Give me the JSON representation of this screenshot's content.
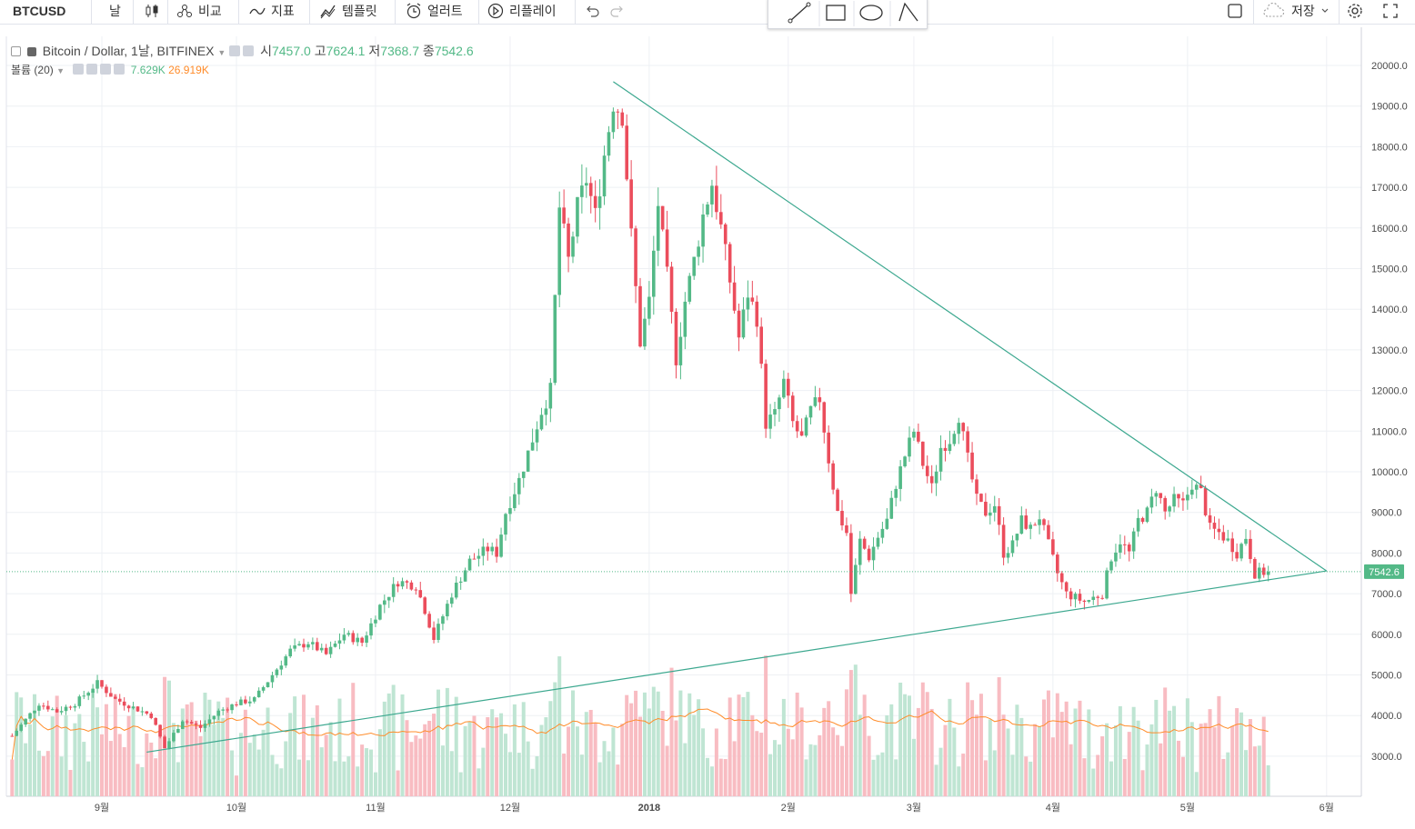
{
  "toolbar": {
    "symbol": "BTCUSD",
    "interval": "날",
    "compare": "비교",
    "indicators": "지표",
    "templates": "템플릿",
    "alerts": "얼러트",
    "replay": "리플레이",
    "save": "저장"
  },
  "legend": {
    "title": "Bitcoin / Dollar, 1날, BITFINEX",
    "open_label": "시",
    "open": "7457.0",
    "high_label": "고",
    "high": "7624.1",
    "low_label": "저",
    "low": "7368.7",
    "close_label": "종",
    "close": "7542.6",
    "volume_label": "볼륨 (20)",
    "volume": "7.629K",
    "volume_ma": "26.919K"
  },
  "price_badge": "7542.6",
  "colors": {
    "up": "#53b987",
    "down": "#eb4d5c",
    "trendline": "#3ca88f",
    "ma": "#ff8c2a"
  },
  "chart_data": {
    "type": "candlestick",
    "ylim": [
      2000,
      20600
    ],
    "y_ticks": [
      3000,
      4000,
      5000,
      6000,
      7000,
      8000,
      9000,
      10000,
      11000,
      12000,
      13000,
      14000,
      15000,
      16000,
      17000,
      18000,
      19000,
      20000
    ],
    "x_ticks": [
      {
        "label": "9월",
        "day": 0
      },
      {
        "label": "10월",
        "day": 30
      },
      {
        "label": "11월",
        "day": 61
      },
      {
        "label": "12월",
        "day": 91
      },
      {
        "label": "2018",
        "day": 122
      },
      {
        "label": "2월",
        "day": 153
      },
      {
        "label": "3월",
        "day": 181
      },
      {
        "label": "4월",
        "day": 212
      },
      {
        "label": "5월",
        "day": 242
      },
      {
        "label": "6월",
        "day": 273
      }
    ],
    "start_day": -20,
    "end_day": 260,
    "anchors": [
      [
        -20,
        3500
      ],
      [
        -14,
        4300
      ],
      [
        -10,
        4100
      ],
      [
        -6,
        4300
      ],
      [
        -1,
        4800
      ],
      [
        3,
        4400
      ],
      [
        7,
        4200
      ],
      [
        11,
        4000
      ],
      [
        14,
        3200
      ],
      [
        18,
        3900
      ],
      [
        22,
        3700
      ],
      [
        26,
        4100
      ],
      [
        30,
        4300
      ],
      [
        34,
        4400
      ],
      [
        38,
        5000
      ],
      [
        42,
        5600
      ],
      [
        46,
        5800
      ],
      [
        50,
        5500
      ],
      [
        54,
        6000
      ],
      [
        58,
        5800
      ],
      [
        62,
        6700
      ],
      [
        66,
        7300
      ],
      [
        70,
        7200
      ],
      [
        72,
        6600
      ],
      [
        74,
        5900
      ],
      [
        78,
        7000
      ],
      [
        82,
        7800
      ],
      [
        86,
        8100
      ],
      [
        88,
        8000
      ],
      [
        90,
        9000
      ],
      [
        93,
        9800
      ],
      [
        96,
        10800
      ],
      [
        98,
        11500
      ],
      [
        100,
        12000
      ],
      [
        102,
        16500
      ],
      [
        104,
        15200
      ],
      [
        106,
        16500
      ],
      [
        108,
        17200
      ],
      [
        110,
        16300
      ],
      [
        112,
        17800
      ],
      [
        114,
        19100
      ],
      [
        116,
        18800
      ],
      [
        118,
        15800
      ],
      [
        120,
        13200
      ],
      [
        122,
        14200
      ],
      [
        124,
        16600
      ],
      [
        126,
        14800
      ],
      [
        128,
        12800
      ],
      [
        130,
        14200
      ],
      [
        132,
        15200
      ],
      [
        134,
        16300
      ],
      [
        136,
        17100
      ],
      [
        138,
        16000
      ],
      [
        140,
        14700
      ],
      [
        142,
        13300
      ],
      [
        144,
        14400
      ],
      [
        146,
        13800
      ],
      [
        148,
        11200
      ],
      [
        150,
        11400
      ],
      [
        152,
        12200
      ],
      [
        154,
        11200
      ],
      [
        156,
        10800
      ],
      [
        158,
        11500
      ],
      [
        160,
        11800
      ],
      [
        162,
        10300
      ],
      [
        164,
        9000
      ],
      [
        166,
        8500
      ],
      [
        167,
        7000
      ],
      [
        169,
        8300
      ],
      [
        171,
        7900
      ],
      [
        173,
        8400
      ],
      [
        175,
        8800
      ],
      [
        177,
        9700
      ],
      [
        179,
        10400
      ],
      [
        181,
        11000
      ],
      [
        183,
        10200
      ],
      [
        185,
        9600
      ],
      [
        187,
        10600
      ],
      [
        189,
        10800
      ],
      [
        191,
        11400
      ],
      [
        193,
        10300
      ],
      [
        195,
        9300
      ],
      [
        197,
        9000
      ],
      [
        199,
        9200
      ],
      [
        201,
        8000
      ],
      [
        203,
        8200
      ],
      [
        205,
        8800
      ],
      [
        207,
        8600
      ],
      [
        209,
        8900
      ],
      [
        211,
        8200
      ],
      [
        213,
        7500
      ],
      [
        215,
        7000
      ],
      [
        217,
        6900
      ],
      [
        219,
        6800
      ],
      [
        221,
        6900
      ],
      [
        223,
        7000
      ],
      [
        225,
        7900
      ],
      [
        227,
        8300
      ],
      [
        229,
        8000
      ],
      [
        231,
        8800
      ],
      [
        233,
        9000
      ],
      [
        235,
        9600
      ],
      [
        237,
        9000
      ],
      [
        239,
        9300
      ],
      [
        241,
        9200
      ],
      [
        243,
        9700
      ],
      [
        245,
        9500
      ],
      [
        247,
        8600
      ],
      [
        249,
        8500
      ],
      [
        251,
        8300
      ],
      [
        253,
        8000
      ],
      [
        255,
        8400
      ],
      [
        257,
        7500
      ],
      [
        260,
        7542.6
      ]
    ],
    "trendlines": [
      {
        "name": "resistance",
        "from": [
          114,
          19600
        ],
        "to": [
          273,
          7560
        ]
      },
      {
        "name": "support",
        "from": [
          10,
          3100
        ],
        "to": [
          273,
          7560
        ]
      }
    ],
    "volume_max": 90000
  }
}
